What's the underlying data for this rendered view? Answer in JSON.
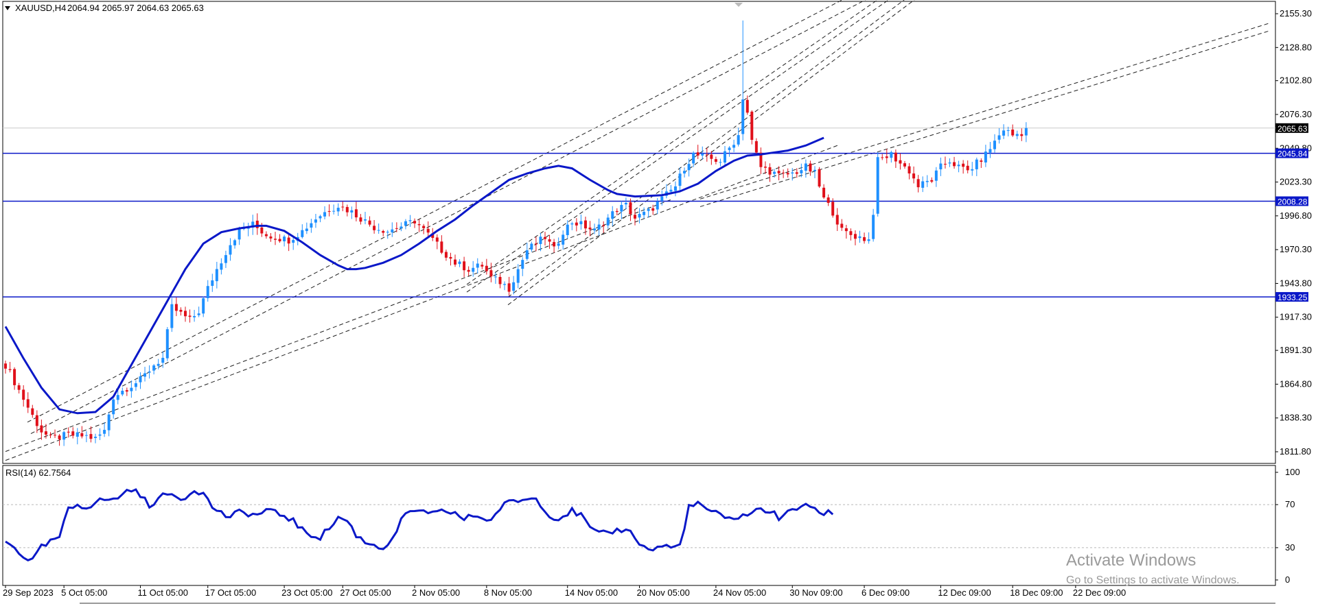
{
  "header": {
    "symbol": "XAUUSD,H4",
    "ohlc": "2064.94 2065.97 2064.63 2065.63"
  },
  "indicator": {
    "label": "RSI(14) 62.7564"
  },
  "watermark": {
    "line1": "Activate Windows",
    "line2": "Go to Settings to activate Windows."
  },
  "colors": {
    "bull": "#1e90ff",
    "bear": "#e0101a",
    "ma": "#0a18c8",
    "level_line": "#0a18c8",
    "trend_line": "#202020",
    "rsi": "#0a18c8",
    "current_price_bg": "#000000"
  },
  "chart_data": [
    {
      "type": "candlestick",
      "series_name": "XAUUSD,H4",
      "x_ticks": [
        "29 Sep 2023",
        "5 Oct 05:00",
        "11 Oct 05:00",
        "17 Oct 05:00",
        "23 Oct 05:00",
        "27 Oct 05:00",
        "2 Nov 05:00",
        "8 Nov 05:00",
        "14 Nov 05:00",
        "20 Nov 05:00",
        "24 Nov 05:00",
        "30 Nov 09:00",
        "6 Dec 09:00",
        "12 Dec 09:00",
        "18 Dec 09:00",
        "22 Dec 09:00"
      ],
      "x_tick_index": [
        0,
        13,
        30,
        45,
        62,
        75,
        91,
        107,
        125,
        141,
        158,
        175,
        191,
        208,
        224,
        238
      ],
      "y_ticks": [
        "2155.30",
        "2128.80",
        "2102.80",
        "2076.30",
        "2049.80",
        "2023.30",
        "1996.80",
        "1970.30",
        "1943.80",
        "1917.30",
        "1891.30",
        "1864.80",
        "1838.30",
        "1811.80"
      ],
      "ylim": [
        1811.8,
        2155.3
      ],
      "price_path": [
        [
          0,
          1880
        ],
        [
          3,
          1860
        ],
        [
          6,
          1840
        ],
        [
          8,
          1828
        ],
        [
          10,
          1822
        ],
        [
          14,
          1825
        ],
        [
          18,
          1824
        ],
        [
          20,
          1822
        ],
        [
          22,
          1828
        ],
        [
          24,
          1855
        ],
        [
          27,
          1862
        ],
        [
          30,
          1868
        ],
        [
          33,
          1880
        ],
        [
          35,
          1885
        ],
        [
          37,
          1925
        ],
        [
          39,
          1920
        ],
        [
          41,
          1915
        ],
        [
          43,
          1922
        ],
        [
          45,
          1940
        ],
        [
          47,
          1955
        ],
        [
          50,
          1975
        ],
        [
          52,
          1985
        ],
        [
          55,
          1990
        ],
        [
          58,
          1982
        ],
        [
          60,
          1980
        ],
        [
          63,
          1978
        ],
        [
          66,
          1985
        ],
        [
          69,
          1995
        ],
        [
          72,
          2002
        ],
        [
          74,
          2005
        ],
        [
          77,
          2000
        ],
        [
          79,
          1995
        ],
        [
          82,
          1988
        ],
        [
          85,
          1985
        ],
        [
          89,
          1990
        ],
        [
          91,
          1993
        ],
        [
          94,
          1982
        ],
        [
          97,
          1970
        ],
        [
          100,
          1960
        ],
        [
          103,
          1955
        ],
        [
          106,
          1958
        ],
        [
          108,
          1948
        ],
        [
          110,
          1945
        ],
        [
          112,
          1940
        ],
        [
          114,
          1955
        ],
        [
          116,
          1970
        ],
        [
          118,
          1975
        ],
        [
          120,
          1980
        ],
        [
          122,
          1970
        ],
        [
          124,
          1985
        ],
        [
          126,
          1992
        ],
        [
          128,
          1990
        ],
        [
          131,
          1985
        ],
        [
          134,
          1995
        ],
        [
          136,
          2002
        ],
        [
          138,
          2005
        ],
        [
          140,
          1995
        ],
        [
          143,
          2000
        ],
        [
          146,
          2010
        ],
        [
          149,
          2020
        ],
        [
          151,
          2035
        ],
        [
          153,
          2045
        ],
        [
          156,
          2042
        ],
        [
          159,
          2040
        ],
        [
          161,
          2050
        ],
        [
          163,
          2060
        ],
        [
          164,
          2090
        ],
        [
          165,
          2078
        ],
        [
          166,
          2055
        ],
        [
          168,
          2035
        ],
        [
          170,
          2032
        ],
        [
          172,
          2028
        ],
        [
          175,
          2030
        ],
        [
          178,
          2035
        ],
        [
          180,
          2030
        ],
        [
          182,
          2010
        ],
        [
          184,
          2000
        ],
        [
          186,
          1985
        ],
        [
          188,
          1982
        ],
        [
          190,
          1980
        ],
        [
          192,
          1978
        ],
        [
          193,
          2000
        ],
        [
          194,
          2040
        ],
        [
          197,
          2045
        ],
        [
          199,
          2038
        ],
        [
          201,
          2032
        ],
        [
          203,
          2020
        ],
        [
          206,
          2025
        ],
        [
          208,
          2035
        ],
        [
          210,
          2040
        ],
        [
          212,
          2035
        ],
        [
          214,
          2032
        ],
        [
          216,
          2038
        ],
        [
          218,
          2045
        ],
        [
          220,
          2055
        ],
        [
          222,
          2065
        ],
        [
          224,
          2060
        ],
        [
          226,
          2062
        ],
        [
          227,
          2065.63
        ]
      ],
      "spike_high": {
        "index": 164,
        "value": 2150
      },
      "moving_average": [
        [
          0,
          1910
        ],
        [
          4,
          1885
        ],
        [
          8,
          1862
        ],
        [
          12,
          1845
        ],
        [
          16,
          1842
        ],
        [
          20,
          1843
        ],
        [
          24,
          1855
        ],
        [
          28,
          1880
        ],
        [
          32,
          1905
        ],
        [
          36,
          1930
        ],
        [
          40,
          1955
        ],
        [
          44,
          1975
        ],
        [
          48,
          1984
        ],
        [
          52,
          1987
        ],
        [
          56,
          1989
        ],
        [
          58,
          1989
        ],
        [
          62,
          1985
        ],
        [
          66,
          1976
        ],
        [
          70,
          1966
        ],
        [
          74,
          1958
        ],
        [
          76,
          1955
        ],
        [
          78,
          1955
        ],
        [
          80,
          1956
        ],
        [
          84,
          1960
        ],
        [
          88,
          1966
        ],
        [
          92,
          1975
        ],
        [
          96,
          1985
        ],
        [
          100,
          1994
        ],
        [
          104,
          2005
        ],
        [
          108,
          2015
        ],
        [
          112,
          2025
        ],
        [
          116,
          2030
        ],
        [
          120,
          2034
        ],
        [
          123,
          2036
        ],
        [
          126,
          2034
        ],
        [
          130,
          2025
        ],
        [
          134,
          2017
        ],
        [
          136,
          2014
        ],
        [
          140,
          2012
        ],
        [
          146,
          2013
        ],
        [
          150,
          2016
        ],
        [
          154,
          2022
        ],
        [
          158,
          2032
        ],
        [
          162,
          2040
        ],
        [
          165,
          2044
        ],
        [
          168,
          2045
        ],
        [
          170,
          2046
        ],
        [
          172,
          2047
        ],
        [
          174,
          2048
        ],
        [
          176,
          2050
        ],
        [
          178,
          2052
        ],
        [
          180,
          2055
        ],
        [
          182,
          2058
        ]
      ],
      "horizontal_levels": [
        {
          "label": "2045.84",
          "value": 2045.84
        },
        {
          "label": "2008.28",
          "value": 2008.28
        },
        {
          "label": "1933.25",
          "value": 1933.25
        }
      ],
      "current_price": {
        "label": "2065.63",
        "value": 2065.63
      }
    },
    {
      "type": "line",
      "series_name": "RSI(14)",
      "y_ticks": [
        "100",
        "70",
        "30",
        "0"
      ],
      "ylim": [
        0,
        100
      ],
      "levels": [
        70,
        30
      ],
      "values": [
        [
          0,
          35
        ],
        [
          2,
          30
        ],
        [
          4,
          22
        ],
        [
          6,
          18
        ],
        [
          8,
          30
        ],
        [
          10,
          35
        ],
        [
          12,
          40
        ],
        [
          14,
          65
        ],
        [
          16,
          70
        ],
        [
          18,
          68
        ],
        [
          20,
          72
        ],
        [
          22,
          75
        ],
        [
          24,
          74
        ],
        [
          26,
          80
        ],
        [
          28,
          85
        ],
        [
          30,
          78
        ],
        [
          32,
          70
        ],
        [
          34,
          75
        ],
        [
          36,
          80
        ],
        [
          38,
          78
        ],
        [
          40,
          76
        ],
        [
          42,
          85
        ],
        [
          44,
          80
        ],
        [
          46,
          68
        ],
        [
          48,
          62
        ],
        [
          50,
          58
        ],
        [
          52,
          63
        ],
        [
          54,
          62
        ],
        [
          56,
          60
        ],
        [
          58,
          65
        ],
        [
          60,
          62
        ],
        [
          62,
          60
        ],
        [
          64,
          55
        ],
        [
          66,
          46
        ],
        [
          68,
          42
        ],
        [
          70,
          40
        ],
        [
          72,
          48
        ],
        [
          74,
          58
        ],
        [
          76,
          55
        ],
        [
          78,
          42
        ],
        [
          80,
          35
        ],
        [
          82,
          33
        ],
        [
          84,
          30
        ],
        [
          86,
          36
        ],
        [
          88,
          56
        ],
        [
          90,
          62
        ],
        [
          92,
          66
        ],
        [
          94,
          60
        ],
        [
          96,
          62
        ],
        [
          98,
          64
        ],
        [
          100,
          62
        ],
        [
          102,
          56
        ],
        [
          104,
          60
        ],
        [
          106,
          58
        ],
        [
          108,
          55
        ],
        [
          110,
          67
        ],
        [
          112,
          72
        ],
        [
          114,
          74
        ],
        [
          116,
          75
        ],
        [
          118,
          76
        ],
        [
          120,
          66
        ],
        [
          122,
          56
        ],
        [
          124,
          60
        ],
        [
          126,
          64
        ],
        [
          128,
          60
        ],
        [
          130,
          48
        ],
        [
          132,
          42
        ],
        [
          134,
          44
        ],
        [
          136,
          46
        ],
        [
          138,
          48
        ],
        [
          140,
          40
        ],
        [
          142,
          30
        ],
        [
          144,
          28
        ],
        [
          146,
          32
        ],
        [
          148,
          30
        ],
        [
          150,
          32
        ],
        [
          152,
          68
        ],
        [
          154,
          70
        ],
        [
          156,
          66
        ],
        [
          158,
          62
        ],
        [
          160,
          56
        ],
        [
          162,
          58
        ],
        [
          164,
          60
        ],
        [
          166,
          62
        ],
        [
          168,
          66
        ],
        [
          170,
          64
        ],
        [
          172,
          58
        ],
        [
          174,
          62
        ],
        [
          176,
          66
        ],
        [
          178,
          72
        ],
        [
          180,
          64
        ],
        [
          182,
          62
        ],
        [
          184,
          63
        ]
      ]
    }
  ]
}
